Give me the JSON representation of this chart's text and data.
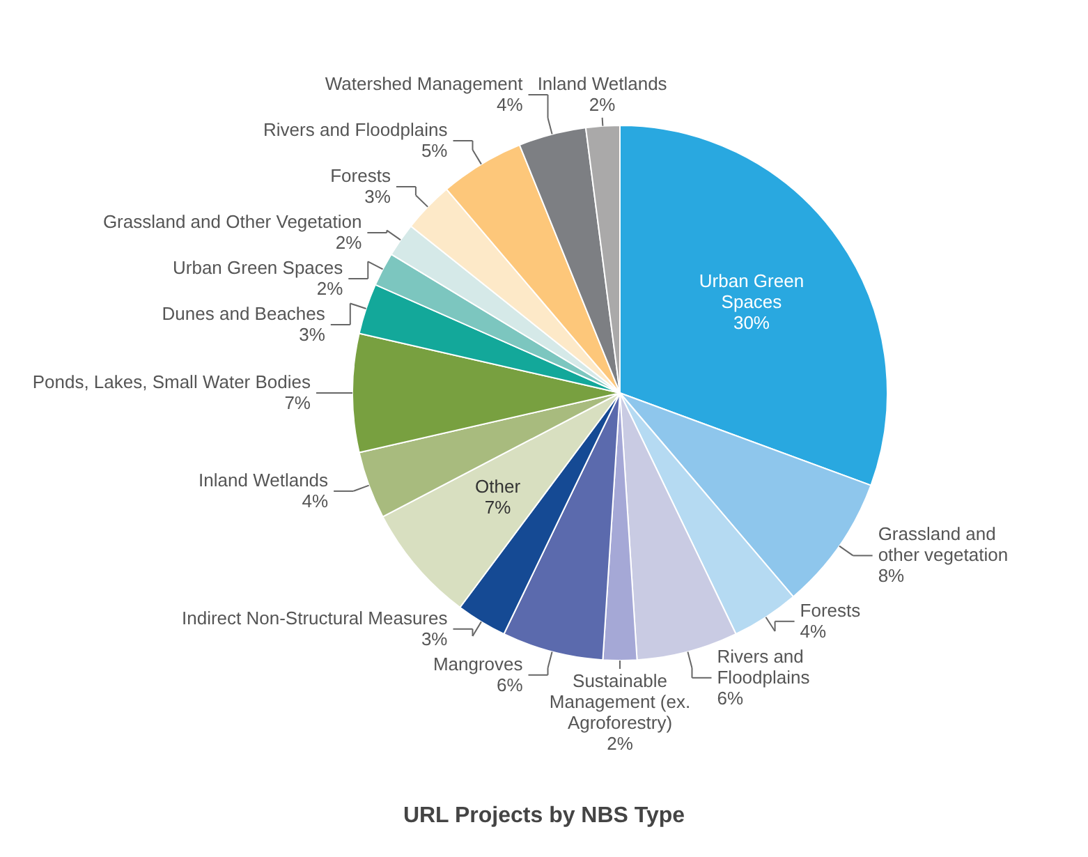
{
  "chart_data": {
    "type": "pie",
    "title": "URL Projects by NBS Type",
    "categories": [
      "Urban Green Spaces",
      "Grassland and other vegetation",
      "Forests",
      "Rivers and Floodplains",
      "Sustainable Management (ex. Agroforestry)",
      "Mangroves",
      "Indirect Non-Structural Measures",
      "Other",
      "Inland Wetlands",
      "Ponds, Lakes, Small Water Bodies",
      "Dunes and Beaches",
      "Urban Green Spaces",
      "Grassland and Other Vegetation",
      "Forests",
      "Rivers and Floodplains",
      "Watershed Management",
      "Inland Wetlands"
    ],
    "values": [
      30,
      8,
      4,
      6,
      2,
      6,
      3,
      7,
      4,
      7,
      3,
      2,
      2,
      3,
      5,
      4,
      2
    ],
    "value_labels": [
      "30%",
      "8%",
      "4%",
      "6%",
      "2%",
      "6%",
      "3%",
      "7%",
      "4%",
      "7%",
      "3%",
      "2%",
      "2%",
      "3%",
      "5%",
      "4%",
      "2%"
    ],
    "colors": [
      "#29a8e0",
      "#8ec6ec",
      "#b5daf2",
      "#c9cbe3",
      "#a5a8d6",
      "#5b6aad",
      "#154a94",
      "#d8dfc0",
      "#a8bb7e",
      "#78a040",
      "#13a89a",
      "#7cc6bf",
      "#d5e9e8",
      "#fde9c8",
      "#fdc77a",
      "#7d7f83",
      "#aaa9a9"
    ]
  }
}
